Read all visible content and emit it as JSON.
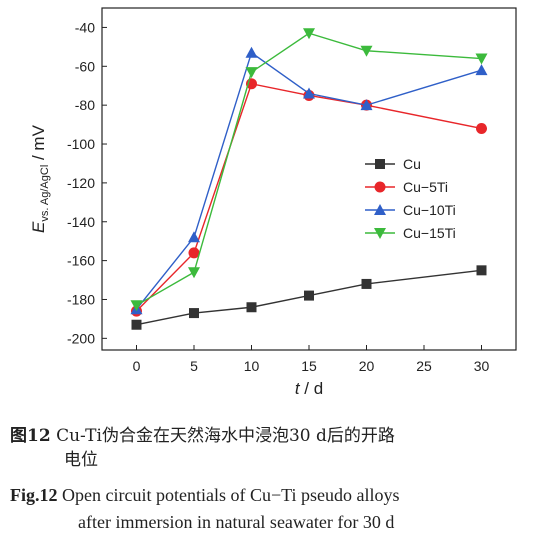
{
  "chart_data": {
    "type": "line",
    "x": [
      0,
      5,
      10,
      15,
      20,
      30
    ],
    "series": [
      {
        "name": "Cu",
        "marker": "square",
        "color": "#333333",
        "values": [
          -193,
          -187,
          -184,
          -178,
          -172,
          -165
        ]
      },
      {
        "name": "Cu−5Ti",
        "marker": "circle",
        "color": "#e8262a",
        "values": [
          -186,
          -156,
          -69,
          -75,
          -80,
          -92
        ]
      },
      {
        "name": "Cu−10Ti",
        "marker": "triangle-up",
        "color": "#2f5fc8",
        "values": [
          -185,
          -148,
          -53,
          -74,
          -80,
          -62
        ]
      },
      {
        "name": "Cu−15Ti",
        "marker": "triangle-down",
        "color": "#3cba3c",
        "values": [
          -183,
          -166,
          -63,
          -43,
          -52,
          -56
        ]
      }
    ],
    "xlabel_italic": "t",
    "xlabel_rest": " / d",
    "ylabel_italic": "E",
    "ylabel_sub": "vs. Ag/AgCl",
    "ylabel_rest": " / mV",
    "xlim": [
      -3,
      33
    ],
    "ylim": [
      -206,
      -30
    ],
    "xticks": [
      0,
      5,
      10,
      15,
      20,
      25,
      30
    ],
    "yticks": [
      -200,
      -180,
      -160,
      -140,
      -120,
      -100,
      -80,
      -60,
      -40
    ],
    "grid": false,
    "legend_position": "right-middle"
  },
  "caption_cn": {
    "label": "图12",
    "text": " Cu-Ti伪合金在天然海水中浸泡30 d后的开路",
    "line2": "电位"
  },
  "caption_en": {
    "label": "Fig.12",
    "text": " Open circuit potentials of Cu−Ti pseudo alloys",
    "line2": "after immersion in natural seawater for 30 d"
  }
}
